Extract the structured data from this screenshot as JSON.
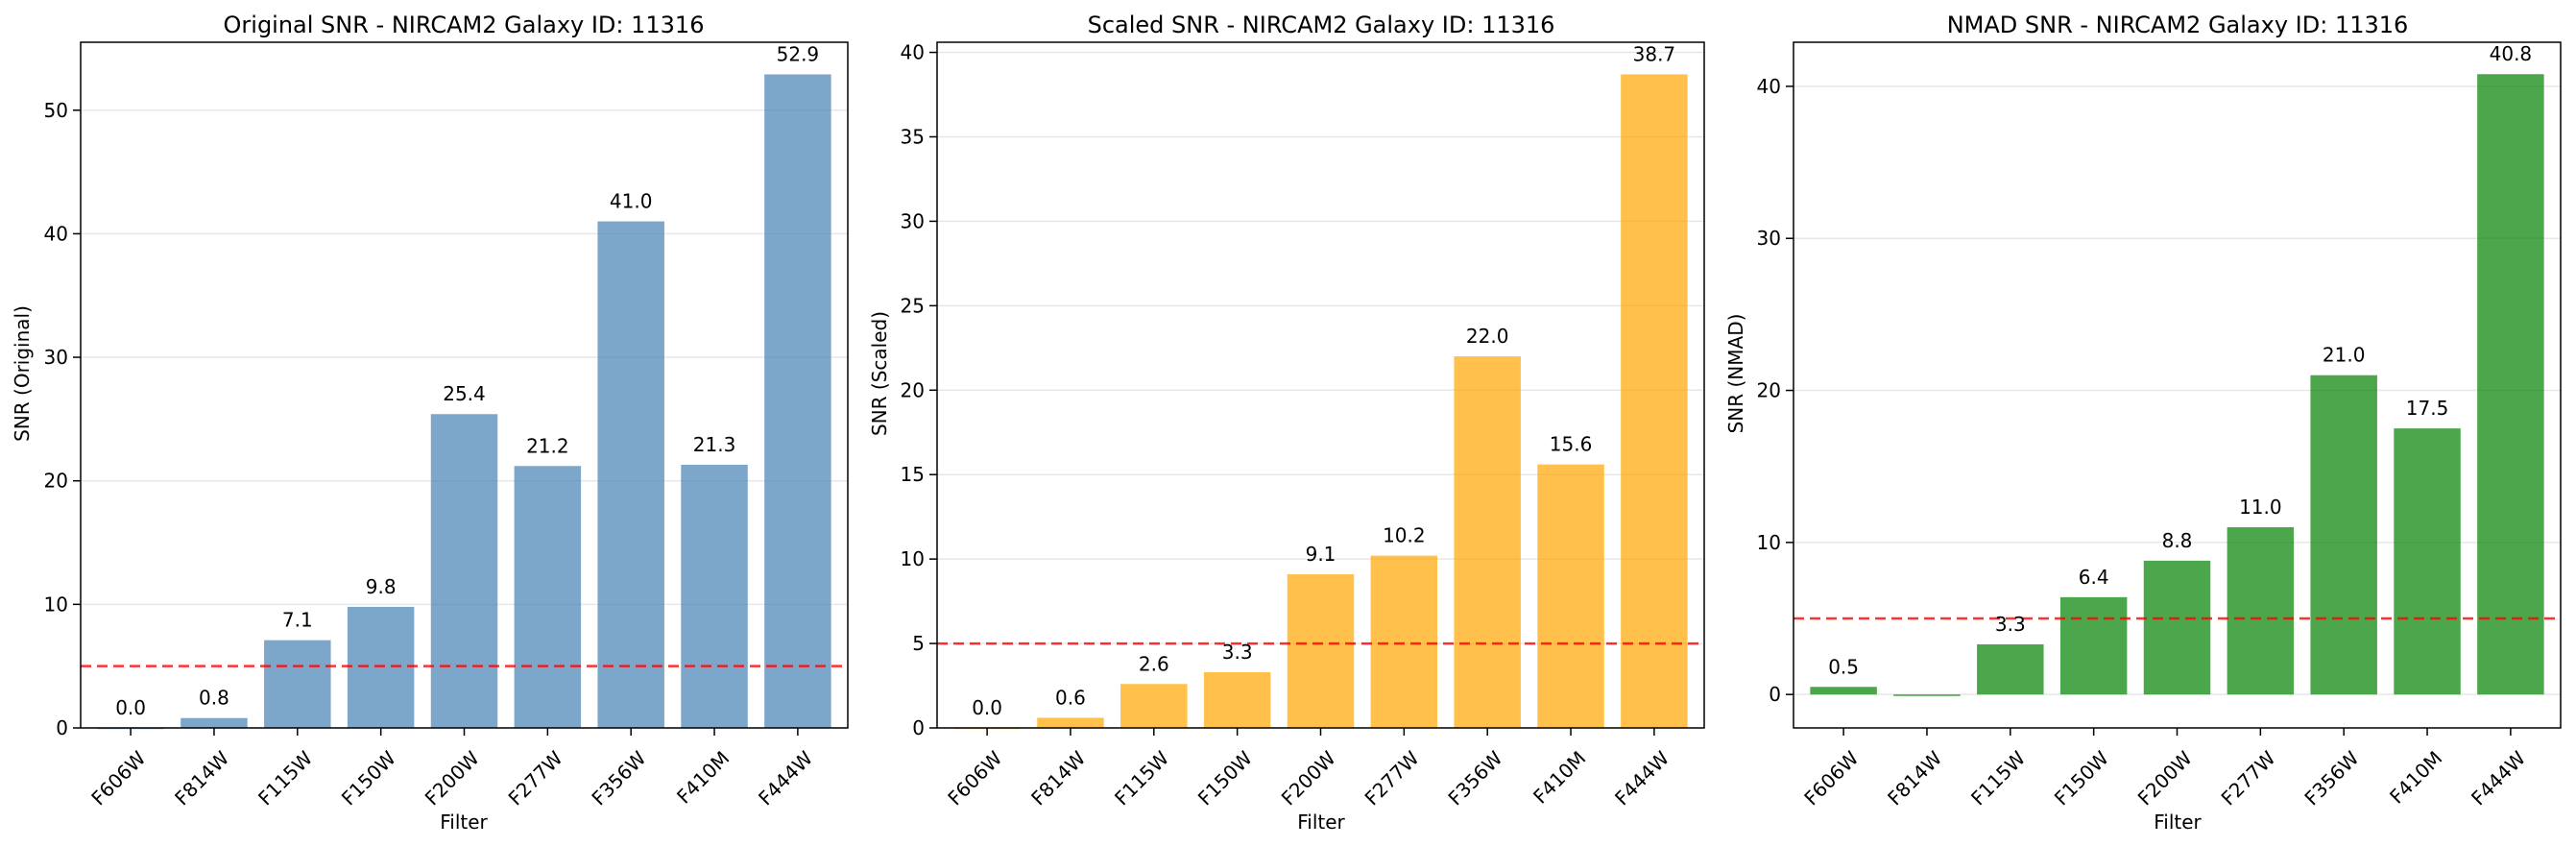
{
  "colors": {
    "threshold": "#ff0000"
  },
  "chart_data": [
    {
      "type": "bar",
      "title": "Original SNR - NIRCAM2 Galaxy ID: 11316",
      "xlabel": "Filter",
      "ylabel": "SNR (Original)",
      "categories": [
        "F606W",
        "F814W",
        "F115W",
        "F150W",
        "F200W",
        "F277W",
        "F356W",
        "F410M",
        "F444W"
      ],
      "values": [
        0.0,
        0.8,
        7.1,
        9.8,
        25.4,
        21.2,
        41.0,
        21.3,
        52.9
      ],
      "data_labels": [
        "0.0",
        "0.8",
        "7.1",
        "9.8",
        "25.4",
        "21.2",
        "41.0",
        "21.3",
        "52.9"
      ],
      "ylim": [
        0,
        55.5
      ],
      "yticks": [
        0,
        10,
        20,
        30,
        40,
        50
      ],
      "threshold": 5,
      "bar_color": "#4682b4",
      "bar_opacity": 0.7,
      "grid": "y"
    },
    {
      "type": "bar",
      "title": "Scaled SNR - NIRCAM2 Galaxy ID: 11316",
      "xlabel": "Filter",
      "ylabel": "SNR (Scaled)",
      "categories": [
        "F606W",
        "F814W",
        "F115W",
        "F150W",
        "F200W",
        "F277W",
        "F356W",
        "F410M",
        "F444W"
      ],
      "values": [
        0.0,
        0.6,
        2.6,
        3.3,
        9.1,
        10.2,
        22.0,
        15.6,
        38.7
      ],
      "data_labels": [
        "0.0",
        "0.6",
        "2.6",
        "3.3",
        "9.1",
        "10.2",
        "22.0",
        "15.6",
        "38.7"
      ],
      "ylim": [
        0,
        40.6
      ],
      "yticks": [
        0,
        5,
        10,
        15,
        20,
        25,
        30,
        35,
        40
      ],
      "threshold": 5,
      "bar_color": "#ffa500",
      "bar_opacity": 0.7,
      "grid": "y"
    },
    {
      "type": "bar",
      "title": "NMAD SNR - NIRCAM2 Galaxy ID: 11316",
      "xlabel": "Filter",
      "ylabel": "SNR (NMAD)",
      "categories": [
        "F606W",
        "F814W",
        "F115W",
        "F150W",
        "F200W",
        "F277W",
        "F356W",
        "F410M",
        "F444W"
      ],
      "values": [
        0.5,
        -0.1,
        3.3,
        6.4,
        8.8,
        11.0,
        21.0,
        17.5,
        40.8
      ],
      "data_labels": [
        "0.5",
        "",
        "3.3",
        "6.4",
        "8.8",
        "11.0",
        "21.0",
        "17.5",
        "40.8"
      ],
      "ylim": [
        -2.2,
        42.9
      ],
      "yticks": [
        0,
        10,
        20,
        30,
        40
      ],
      "threshold": 5,
      "bar_color": "#008000",
      "bar_opacity": 0.7,
      "grid": "y"
    }
  ]
}
